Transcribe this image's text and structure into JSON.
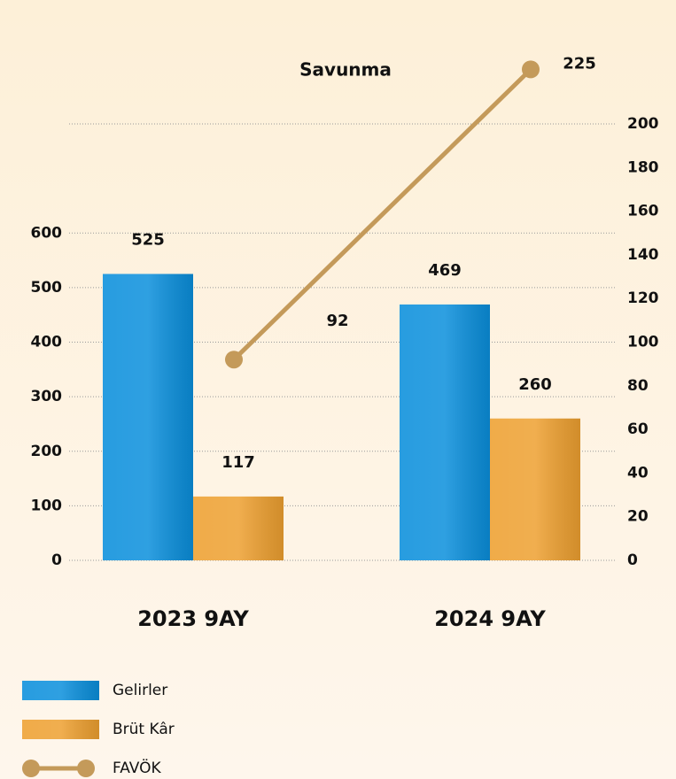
{
  "chart_data": {
    "type": "bar",
    "title": "Savunma",
    "categories": [
      "2023 9AY",
      "2024 9AY"
    ],
    "series": [
      {
        "name": "Gelirler",
        "color": "#0a8fdc",
        "values": [
          525,
          469
        ]
      },
      {
        "name": "Brüt Kâr",
        "color": "#eea030",
        "values": [
          117,
          260
        ]
      },
      {
        "name": "FAVÖK",
        "color": "#c49a5a",
        "values": [
          92,
          225
        ],
        "axis": "y2",
        "type": "line"
      }
    ],
    "ylim": [
      0,
      800
    ],
    "yticks": [
      0,
      100,
      200,
      300,
      400,
      500,
      600
    ],
    "y2lim": [
      0,
      200
    ],
    "y2ticks": [
      0,
      20,
      40,
      60,
      80,
      100,
      120,
      140,
      160,
      180,
      200
    ],
    "grid": true
  }
}
